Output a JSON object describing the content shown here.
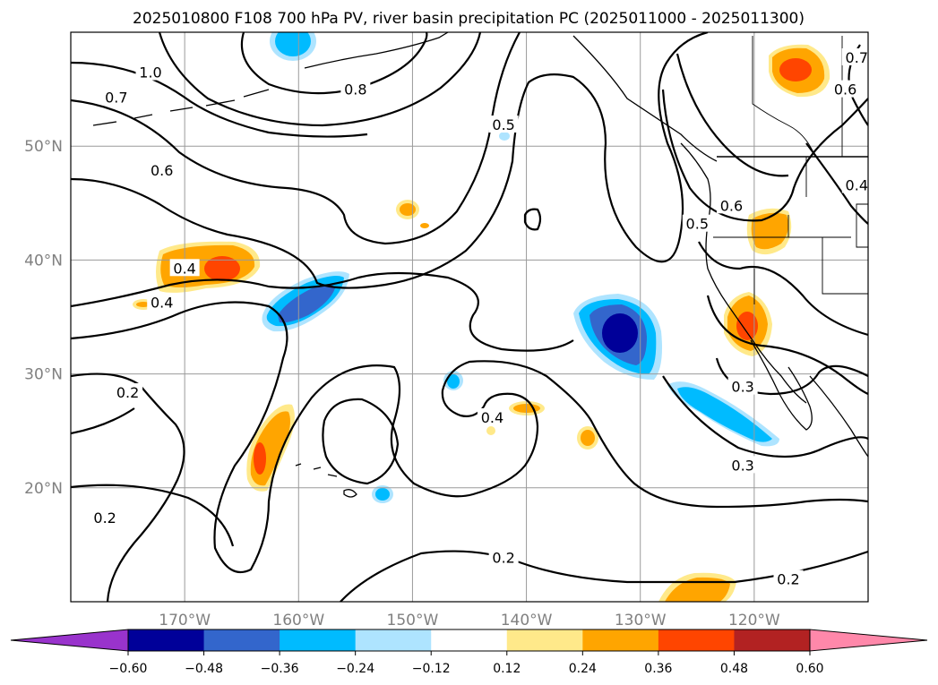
{
  "title": "2025010800 F108 700 hPa PV, river basin precipitation PC (2025011000 - 2025011300)",
  "map": {
    "lon_range": [
      -180,
      -110
    ],
    "lat_range": [
      10,
      60
    ],
    "lon_ticks": [
      {
        "value": -170,
        "label": "170°W"
      },
      {
        "value": -160,
        "label": "160°W"
      },
      {
        "value": -150,
        "label": "150°W"
      },
      {
        "value": -140,
        "label": "140°W"
      },
      {
        "value": -130,
        "label": "130°W"
      },
      {
        "value": -120,
        "label": "120°W"
      }
    ],
    "lat_ticks": [
      {
        "value": 20,
        "label": "20°N"
      },
      {
        "value": 30,
        "label": "30°N"
      },
      {
        "value": 40,
        "label": "40°N"
      },
      {
        "value": 50,
        "label": "50°N"
      }
    ],
    "grid": true
  },
  "contour_labels": [
    {
      "text": "1.0",
      "lon": -173,
      "lat": 56.5
    },
    {
      "text": "0.8",
      "lon": -155,
      "lat": 55.0
    },
    {
      "text": "0.7",
      "lon": -176,
      "lat": 54.3
    },
    {
      "text": "0.6",
      "lon": -172,
      "lat": 47.9
    },
    {
      "text": "0.5",
      "lon": -142,
      "lat": 51.9
    },
    {
      "text": "0.4",
      "lon": -170,
      "lat": 39.3
    },
    {
      "text": "0.4",
      "lon": -172,
      "lat": 36.3
    },
    {
      "text": "0.4",
      "lon": -143,
      "lat": 26.2
    },
    {
      "text": "0.2",
      "lon": -175,
      "lat": 28.4
    },
    {
      "text": "0.2",
      "lon": -177,
      "lat": 17.4
    },
    {
      "text": "0.2",
      "lon": -142,
      "lat": 13.9
    },
    {
      "text": "0.2",
      "lon": -117,
      "lat": 12.0
    },
    {
      "text": "0.3",
      "lon": -121,
      "lat": 28.9
    },
    {
      "text": "0.3",
      "lon": -121,
      "lat": 22.0
    },
    {
      "text": "0.5",
      "lon": -125,
      "lat": 43.2
    },
    {
      "text": "0.6",
      "lon": -122,
      "lat": 44.8
    },
    {
      "text": "0.6",
      "lon": -112,
      "lat": 55.0
    },
    {
      "text": "0.4",
      "lon": -111,
      "lat": 46.6
    },
    {
      "text": "0.7",
      "lon": -111,
      "lat": 57.8
    }
  ],
  "colorbar": {
    "colors": [
      "#9933cc",
      "#000099",
      "#3366cc",
      "#00bbff",
      "#aee4ff",
      "#ffffff",
      "#ffe98a",
      "#ffa500",
      "#ff4500",
      "#b22222",
      "#ff88aa"
    ],
    "tick_labels": [
      "−0.60",
      "−0.48",
      "−0.36",
      "−0.24",
      "−0.12",
      "0.12",
      "0.24",
      "0.36",
      "0.48",
      "0.60"
    ]
  }
}
